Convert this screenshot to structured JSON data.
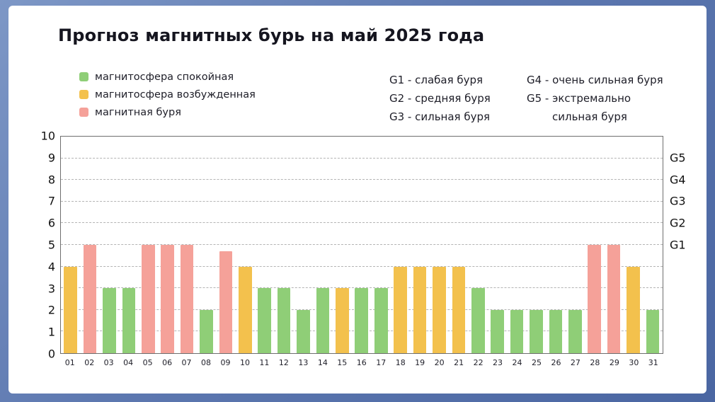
{
  "title": "Прогноз магнитных бурь на май 2025 года",
  "legend": {
    "items": [
      {
        "key": "calm",
        "label": "магнитосфера спокойная",
        "color": "#8fce77"
      },
      {
        "key": "excited",
        "label": "магнитосфера возбужденная",
        "color": "#f3c14d"
      },
      {
        "key": "storm",
        "label": "магнитная буря",
        "color": "#f5a199"
      }
    ]
  },
  "storm_scale": {
    "col1": [
      "G1 - слабая буря",
      "G2 - средняя буря",
      "G3 - сильная буря"
    ],
    "col2": [
      "G4 - очень сильная буря",
      "G5 - экстремально сильная буря"
    ]
  },
  "chart_data": {
    "type": "bar",
    "title": "Прогноз магнитных бурь на май 2025 года",
    "categories": [
      "01",
      "02",
      "03",
      "04",
      "05",
      "06",
      "07",
      "08",
      "09",
      "10",
      "11",
      "12",
      "13",
      "14",
      "15",
      "16",
      "17",
      "18",
      "19",
      "20",
      "21",
      "22",
      "23",
      "24",
      "25",
      "26",
      "27",
      "28",
      "29",
      "30",
      "31"
    ],
    "values": [
      4,
      5,
      3,
      3,
      5,
      5,
      5,
      2,
      4.7,
      4,
      3,
      3,
      2,
      3,
      3,
      3,
      3,
      4,
      4,
      4,
      4,
      3,
      2,
      2,
      2,
      2,
      2,
      5,
      5,
      4,
      2
    ],
    "levels": [
      "excited",
      "storm",
      "calm",
      "calm",
      "storm",
      "storm",
      "storm",
      "calm",
      "storm",
      "excited",
      "calm",
      "calm",
      "calm",
      "calm",
      "excited",
      "calm",
      "calm",
      "excited",
      "excited",
      "excited",
      "excited",
      "calm",
      "calm",
      "calm",
      "calm",
      "calm",
      "calm",
      "storm",
      "storm",
      "excited",
      "calm"
    ],
    "colors": {
      "calm": "#8fce77",
      "excited": "#f3c14d",
      "storm": "#f5a199"
    },
    "ylim": [
      0,
      10
    ],
    "yticks_left": [
      0,
      1,
      2,
      3,
      4,
      5,
      6,
      7,
      8,
      9,
      10
    ],
    "yticks_right": [
      {
        "label": "G1",
        "value": 5
      },
      {
        "label": "G2",
        "value": 6
      },
      {
        "label": "G3",
        "value": 7
      },
      {
        "label": "G4",
        "value": 8
      },
      {
        "label": "G5",
        "value": 9
      }
    ],
    "grid": "dashed-horizontal",
    "legend_position": "top-left",
    "xlabel": "",
    "ylabel": ""
  }
}
